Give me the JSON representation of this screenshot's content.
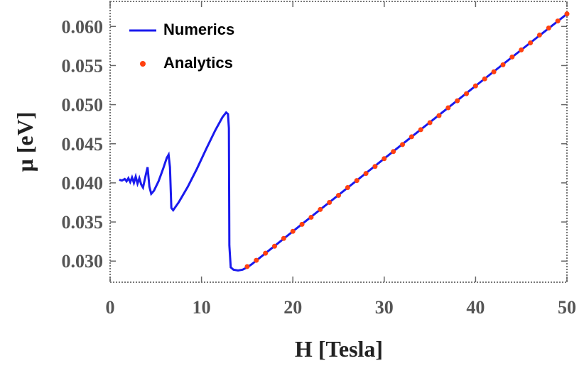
{
  "chart_data": {
    "type": "line",
    "xlabel": "H [Tesla]",
    "ylabel": "μ [eV]",
    "xlim": [
      0,
      50
    ],
    "xticks": [
      0,
      10,
      20,
      30,
      40,
      50
    ],
    "ylim": [
      0.0273,
      0.0632
    ],
    "yticks": [
      {
        "value": 0.03,
        "label": "0.030"
      },
      {
        "value": 0.035,
        "label": "0.035"
      },
      {
        "value": 0.04,
        "label": "0.040"
      },
      {
        "value": 0.045,
        "label": "0.045"
      },
      {
        "value": 0.05,
        "label": "0.050"
      },
      {
        "value": 0.055,
        "label": "0.055"
      },
      {
        "value": 0.06,
        "label": "0.060"
      }
    ],
    "legend": "upper-left",
    "series": [
      {
        "name": "Numerics",
        "color": "#1a1aee",
        "marker": "line",
        "x": [
          1.0,
          1.3,
          1.6,
          1.8,
          2.0,
          2.2,
          2.4,
          2.6,
          2.8,
          3.0,
          3.2,
          3.4,
          3.6,
          3.9,
          4.1,
          4.3,
          4.5,
          4.8,
          5.3,
          5.8,
          6.2,
          6.4,
          6.55,
          6.7,
          6.9,
          7.5,
          8.5,
          9.5,
          10.5,
          11.5,
          12.3,
          12.7,
          12.9,
          13.0,
          13.05,
          13.2,
          13.5,
          14.0,
          14.5,
          15.0,
          15.5,
          20,
          30,
          40,
          50
        ],
        "values": [
          0.0404,
          0.0403,
          0.0405,
          0.0402,
          0.0406,
          0.0401,
          0.0407,
          0.04,
          0.0408,
          0.0399,
          0.0406,
          0.0398,
          0.0394,
          0.041,
          0.042,
          0.0395,
          0.0386,
          0.039,
          0.0402,
          0.0418,
          0.0432,
          0.0436,
          0.042,
          0.0368,
          0.0365,
          0.0375,
          0.0395,
          0.0418,
          0.0443,
          0.0467,
          0.0484,
          0.049,
          0.0488,
          0.047,
          0.032,
          0.0292,
          0.0289,
          0.0288,
          0.0289,
          0.0292,
          0.0296,
          0.0338,
          0.0431,
          0.0524,
          0.0616
        ]
      },
      {
        "name": "Analytics",
        "color": "#ff4010",
        "marker": "dot",
        "x": [
          15,
          16,
          17,
          18,
          19,
          20,
          21,
          22,
          23,
          24,
          25,
          26,
          27,
          28,
          29,
          30,
          31,
          32,
          33,
          34,
          35,
          36,
          37,
          38,
          39,
          40,
          41,
          42,
          43,
          44,
          45,
          46,
          47,
          48,
          49,
          50
        ],
        "values": [
          0.0293,
          0.0301,
          0.031,
          0.0319,
          0.0329,
          0.0338,
          0.0347,
          0.0356,
          0.0366,
          0.0375,
          0.0384,
          0.0394,
          0.0403,
          0.0412,
          0.0421,
          0.0431,
          0.044,
          0.0449,
          0.0459,
          0.0468,
          0.0477,
          0.0486,
          0.0496,
          0.0505,
          0.0514,
          0.0524,
          0.0533,
          0.0542,
          0.0551,
          0.0561,
          0.057,
          0.0579,
          0.0589,
          0.0598,
          0.0607,
          0.0616
        ]
      }
    ]
  }
}
